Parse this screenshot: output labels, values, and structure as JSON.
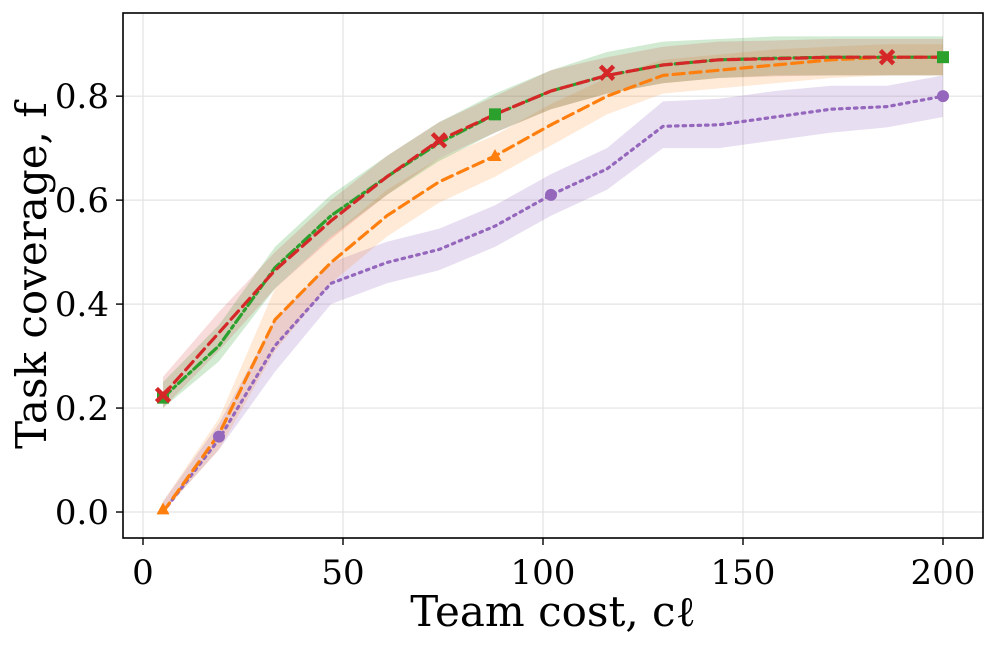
{
  "chart_data": {
    "type": "line",
    "title": "",
    "xlabel": "Team cost, cℓ",
    "ylabel": "Task coverage, f",
    "xlim": [
      -5,
      210
    ],
    "ylim": [
      -0.05,
      0.96
    ],
    "grid": true,
    "x_ticks": [
      0,
      50,
      100,
      150,
      200
    ],
    "x_tick_labels": [
      "0",
      "50",
      "100",
      "150",
      "200"
    ],
    "y_ticks": [
      0.0,
      0.2,
      0.4,
      0.6,
      0.8
    ],
    "y_tick_labels": [
      "0.0",
      "0.2",
      "0.4",
      "0.6",
      "0.8"
    ],
    "series": [
      {
        "name": "purple-dotted",
        "color": "#9467bd",
        "line_style": "dotted",
        "marker": "circle",
        "band_opacity": 0.22,
        "x": [
          5,
          19,
          33,
          47,
          61,
          74,
          88,
          102,
          116,
          130,
          144,
          158,
          172,
          186,
          200
        ],
        "y": [
          0.0,
          0.14,
          0.32,
          0.44,
          0.48,
          0.505,
          0.55,
          0.61,
          0.66,
          0.742,
          0.745,
          0.76,
          0.775,
          0.78,
          0.8
        ],
        "lower": [
          0.0,
          0.12,
          0.27,
          0.4,
          0.44,
          0.465,
          0.51,
          0.57,
          0.62,
          0.7,
          0.7,
          0.715,
          0.73,
          0.74,
          0.76
        ],
        "upper": [
          0.02,
          0.17,
          0.37,
          0.48,
          0.52,
          0.545,
          0.59,
          0.65,
          0.7,
          0.79,
          0.795,
          0.81,
          0.82,
          0.82,
          0.84
        ],
        "marker_x": [
          19,
          102,
          200
        ],
        "marker_y": [
          0.145,
          0.61,
          0.8
        ]
      },
      {
        "name": "orange-dashed",
        "color": "#ff7f0e",
        "line_style": "dashed",
        "marker": "triangle",
        "band_opacity": 0.16,
        "x": [
          5,
          19,
          33,
          47,
          61,
          74,
          88,
          102,
          116,
          130,
          144,
          158,
          172,
          186,
          200
        ],
        "y": [
          0.0,
          0.15,
          0.37,
          0.48,
          0.57,
          0.635,
          0.685,
          0.745,
          0.8,
          0.84,
          0.85,
          0.86,
          0.87,
          0.875,
          0.875
        ],
        "lower": [
          0.0,
          0.12,
          0.31,
          0.44,
          0.53,
          0.595,
          0.645,
          0.705,
          0.765,
          0.805,
          0.815,
          0.825,
          0.835,
          0.84,
          0.84
        ],
        "upper": [
          0.02,
          0.18,
          0.43,
          0.53,
          0.62,
          0.68,
          0.725,
          0.785,
          0.835,
          0.87,
          0.88,
          0.89,
          0.895,
          0.9,
          0.9
        ],
        "marker_x": [
          5,
          88
        ],
        "marker_y": [
          0.005,
          0.685
        ]
      },
      {
        "name": "green-dash-dot",
        "color": "#2ca02c",
        "line_style": "dashdot",
        "marker": "square",
        "band_opacity": 0.22,
        "x": [
          5,
          19,
          33,
          47,
          61,
          74,
          88,
          102,
          116,
          130,
          144,
          158,
          172,
          186,
          200
        ],
        "y": [
          0.22,
          0.32,
          0.47,
          0.57,
          0.645,
          0.71,
          0.765,
          0.81,
          0.84,
          0.86,
          0.87,
          0.873,
          0.875,
          0.875,
          0.875
        ],
        "lower": [
          0.2,
          0.29,
          0.43,
          0.53,
          0.61,
          0.675,
          0.73,
          0.775,
          0.805,
          0.825,
          0.835,
          0.84,
          0.84,
          0.84,
          0.84
        ],
        "upper": [
          0.25,
          0.36,
          0.51,
          0.61,
          0.685,
          0.75,
          0.805,
          0.85,
          0.885,
          0.905,
          0.91,
          0.915,
          0.915,
          0.915,
          0.915
        ],
        "marker_x": [
          5,
          88,
          200
        ],
        "marker_y": [
          0.22,
          0.765,
          0.875
        ]
      },
      {
        "name": "red-dashed",
        "color": "#d62728",
        "line_style": "dashed",
        "marker": "x",
        "band_opacity": 0.16,
        "x": [
          5,
          19,
          33,
          47,
          61,
          74,
          88,
          102,
          116,
          130,
          144,
          158,
          172,
          186,
          200
        ],
        "y": [
          0.225,
          0.345,
          0.465,
          0.56,
          0.645,
          0.715,
          0.765,
          0.81,
          0.84,
          0.86,
          0.87,
          0.872,
          0.875,
          0.875,
          0.875
        ],
        "lower": [
          0.2,
          0.31,
          0.43,
          0.525,
          0.61,
          0.68,
          0.73,
          0.775,
          0.805,
          0.825,
          0.835,
          0.838,
          0.84,
          0.84,
          0.84
        ],
        "upper": [
          0.26,
          0.385,
          0.5,
          0.6,
          0.685,
          0.75,
          0.8,
          0.85,
          0.875,
          0.895,
          0.905,
          0.907,
          0.91,
          0.91,
          0.91
        ],
        "marker_x": [
          5,
          74,
          116,
          186
        ],
        "marker_y": [
          0.225,
          0.715,
          0.845,
          0.875
        ]
      }
    ]
  }
}
